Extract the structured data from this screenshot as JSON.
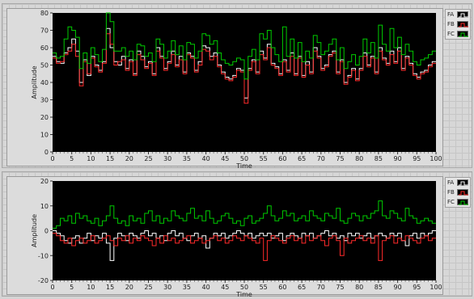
{
  "chart_data": [
    {
      "type": "line",
      "xlabel": "Time",
      "ylabel": "Amplitude",
      "xlim": [
        0,
        100
      ],
      "ylim": [
        0,
        80
      ],
      "xticks": [
        0,
        5,
        10,
        15,
        20,
        25,
        30,
        35,
        40,
        45,
        50,
        55,
        60,
        65,
        70,
        75,
        80,
        85,
        90,
        95,
        100
      ],
      "yticks": [
        0,
        10,
        20,
        30,
        40,
        50,
        60,
        70,
        80
      ],
      "grid": false,
      "legend": "right",
      "background": "#000000",
      "x": [
        0,
        1,
        2,
        3,
        4,
        5,
        6,
        7,
        8,
        9,
        10,
        11,
        12,
        13,
        14,
        15,
        16,
        17,
        18,
        19,
        20,
        21,
        22,
        23,
        24,
        25,
        26,
        27,
        28,
        29,
        30,
        31,
        32,
        33,
        34,
        35,
        36,
        37,
        38,
        39,
        40,
        41,
        42,
        43,
        44,
        45,
        46,
        47,
        48,
        49,
        50,
        51,
        52,
        53,
        54,
        55,
        56,
        57,
        58,
        59,
        60,
        61,
        62,
        63,
        64,
        65,
        66,
        67,
        68,
        69,
        70,
        71,
        72,
        73,
        74,
        75,
        76,
        77,
        78,
        79,
        80,
        81,
        82,
        83,
        84,
        85,
        86,
        87,
        88,
        89,
        90,
        91,
        92,
        93,
        94,
        95,
        96,
        97,
        98,
        99
      ],
      "series": [
        {
          "name": "FA",
          "color": "#ffffff",
          "values": [
            55,
            52,
            51,
            57,
            60,
            65,
            58,
            40,
            53,
            44,
            55,
            50,
            47,
            52,
            71,
            60,
            52,
            50,
            55,
            48,
            53,
            45,
            58,
            55,
            49,
            52,
            45,
            60,
            55,
            48,
            52,
            58,
            50,
            55,
            46,
            57,
            55,
            47,
            52,
            61,
            60,
            55,
            57,
            50,
            46,
            43,
            42,
            44,
            48,
            47,
            31,
            48,
            53,
            46,
            58,
            54,
            62,
            51,
            49,
            45,
            53,
            47,
            57,
            45,
            55,
            44,
            52,
            46,
            60,
            55,
            48,
            50,
            56,
            58,
            46,
            53,
            40,
            44,
            48,
            42,
            48,
            57,
            50,
            55,
            46,
            60,
            54,
            51,
            58,
            52,
            60,
            48,
            55,
            51,
            45,
            43,
            46,
            47,
            50,
            52
          ]
        },
        {
          "name": "FB",
          "color": "#ff2a2a",
          "values": [
            54,
            51,
            52,
            56,
            58,
            62,
            55,
            38,
            52,
            45,
            54,
            49,
            46,
            51,
            68,
            62,
            50,
            52,
            53,
            47,
            52,
            44,
            56,
            53,
            48,
            51,
            44,
            58,
            54,
            47,
            51,
            56,
            49,
            53,
            45,
            56,
            54,
            46,
            50,
            59,
            58,
            53,
            55,
            49,
            45,
            42,
            41,
            43,
            47,
            46,
            28,
            47,
            52,
            45,
            56,
            53,
            60,
            50,
            48,
            44,
            52,
            46,
            55,
            44,
            54,
            43,
            50,
            45,
            58,
            54,
            47,
            49,
            55,
            57,
            45,
            52,
            39,
            43,
            47,
            41,
            47,
            55,
            49,
            54,
            45,
            58,
            53,
            50,
            56,
            51,
            58,
            47,
            54,
            50,
            44,
            42,
            45,
            46,
            49,
            51
          ]
        },
        {
          "name": "FC",
          "color": "#00cc00",
          "values": [
            57,
            54,
            55,
            65,
            72,
            70,
            66,
            48,
            57,
            51,
            60,
            56,
            52,
            59,
            80,
            75,
            58,
            58,
            60,
            55,
            58,
            53,
            62,
            61,
            55,
            57,
            52,
            65,
            62,
            54,
            58,
            64,
            56,
            61,
            53,
            63,
            62,
            54,
            58,
            68,
            67,
            62,
            64,
            57,
            53,
            51,
            50,
            52,
            54,
            53,
            42,
            55,
            59,
            53,
            68,
            65,
            70,
            60,
            56,
            52,
            72,
            55,
            65,
            54,
            63,
            52,
            58,
            54,
            67,
            63,
            56,
            58,
            62,
            65,
            53,
            60,
            48,
            52,
            56,
            50,
            55,
            65,
            57,
            63,
            54,
            73,
            62,
            58,
            71,
            60,
            66,
            56,
            62,
            58,
            52,
            50,
            53,
            54,
            56,
            58
          ]
        }
      ]
    },
    {
      "type": "line",
      "xlabel": "Time",
      "ylabel": "Amplitude",
      "xlim": [
        0,
        100
      ],
      "ylim": [
        -20,
        20
      ],
      "xticks": [
        0,
        5,
        10,
        15,
        20,
        25,
        30,
        35,
        40,
        45,
        50,
        55,
        60,
        65,
        70,
        75,
        80,
        85,
        90,
        95,
        100
      ],
      "yticks": [
        -20,
        -10,
        0,
        10,
        20
      ],
      "grid": false,
      "legend": "right",
      "background": "#000000",
      "x": [
        0,
        1,
        2,
        3,
        4,
        5,
        6,
        7,
        8,
        9,
        10,
        11,
        12,
        13,
        14,
        15,
        16,
        17,
        18,
        19,
        20,
        21,
        22,
        23,
        24,
        25,
        26,
        27,
        28,
        29,
        30,
        31,
        32,
        33,
        34,
        35,
        36,
        37,
        38,
        39,
        40,
        41,
        42,
        43,
        44,
        45,
        46,
        47,
        48,
        49,
        50,
        51,
        52,
        53,
        54,
        55,
        56,
        57,
        58,
        59,
        60,
        61,
        62,
        63,
        64,
        65,
        66,
        67,
        68,
        69,
        70,
        71,
        72,
        73,
        74,
        75,
        76,
        77,
        78,
        79,
        80,
        81,
        82,
        83,
        84,
        85,
        86,
        87,
        88,
        89,
        90,
        91,
        92,
        93,
        94,
        95,
        96,
        97,
        98,
        99
      ],
      "series": [
        {
          "name": "FA",
          "color": "#ffffff",
          "values": [
            0,
            -1,
            -2,
            -4,
            -5,
            -3,
            -2,
            -5,
            -3,
            -1,
            -4,
            -2,
            -3,
            -1,
            -5,
            -12,
            -3,
            -1,
            -2,
            -4,
            -1,
            -2,
            -3,
            -1,
            0,
            -2,
            -1,
            -3,
            -2,
            -4,
            -1,
            0,
            -2,
            -1,
            -3,
            -4,
            -2,
            -1,
            -3,
            -2,
            -7,
            -3,
            -1,
            -2,
            -1,
            -3,
            -2,
            -1,
            0,
            -1,
            -2,
            -1,
            -3,
            -2,
            -1,
            -2,
            -1,
            -3,
            -2,
            -1,
            -4,
            -2,
            -1,
            -2,
            -3,
            -1,
            -2,
            -1,
            -3,
            -2,
            -1,
            0,
            -2,
            -1,
            -3,
            -2,
            -4,
            -1,
            -2,
            -1,
            -3,
            -2,
            -1,
            -3,
            -2,
            -1,
            -2,
            -3,
            -1,
            -2,
            -1,
            -4,
            -6,
            -2,
            -1,
            -3,
            -1,
            -2,
            -1,
            0
          ]
        },
        {
          "name": "FB",
          "color": "#ff2a2a",
          "values": [
            -1,
            -2,
            -4,
            -5,
            -3,
            -6,
            -4,
            -3,
            -5,
            -4,
            -2,
            -5,
            -4,
            -3,
            -2,
            -4,
            -6,
            -3,
            -4,
            -2,
            -5,
            -3,
            -4,
            -2,
            -3,
            -4,
            -6,
            -3,
            -5,
            -2,
            -4,
            -3,
            -5,
            -4,
            -3,
            -2,
            -5,
            -4,
            -3,
            -5,
            -4,
            -3,
            -2,
            -4,
            -3,
            -5,
            -4,
            -2,
            -3,
            -4,
            -2,
            -3,
            -4,
            -5,
            -3,
            -12,
            -4,
            -2,
            -3,
            -4,
            -5,
            -3,
            -2,
            -4,
            -3,
            -5,
            -2,
            -4,
            -3,
            -2,
            -4,
            -6,
            -3,
            -2,
            -4,
            -10,
            -3,
            -5,
            -4,
            -3,
            -2,
            -4,
            -3,
            -5,
            -2,
            -12,
            -4,
            -3,
            -2,
            -5,
            -3,
            -4,
            -2,
            -3,
            -4,
            -5,
            -3,
            -2,
            -4,
            -3
          ]
        },
        {
          "name": "FC",
          "color": "#00cc00",
          "values": [
            1,
            2,
            5,
            4,
            6,
            3,
            7,
            5,
            6,
            4,
            3,
            5,
            2,
            4,
            6,
            10,
            5,
            3,
            4,
            2,
            6,
            4,
            5,
            3,
            7,
            8,
            4,
            6,
            3,
            5,
            4,
            8,
            6,
            5,
            4,
            7,
            9,
            5,
            6,
            4,
            8,
            5,
            3,
            4,
            6,
            7,
            5,
            3,
            4,
            2,
            5,
            6,
            3,
            4,
            5,
            7,
            10,
            6,
            4,
            5,
            8,
            6,
            7,
            4,
            5,
            6,
            4,
            8,
            6,
            5,
            4,
            7,
            6,
            5,
            9,
            4,
            3,
            5,
            7,
            6,
            4,
            6,
            5,
            7,
            8,
            12,
            6,
            5,
            8,
            7,
            5,
            4,
            9,
            6,
            5,
            3,
            4,
            5,
            4,
            3
          ]
        }
      ]
    }
  ]
}
